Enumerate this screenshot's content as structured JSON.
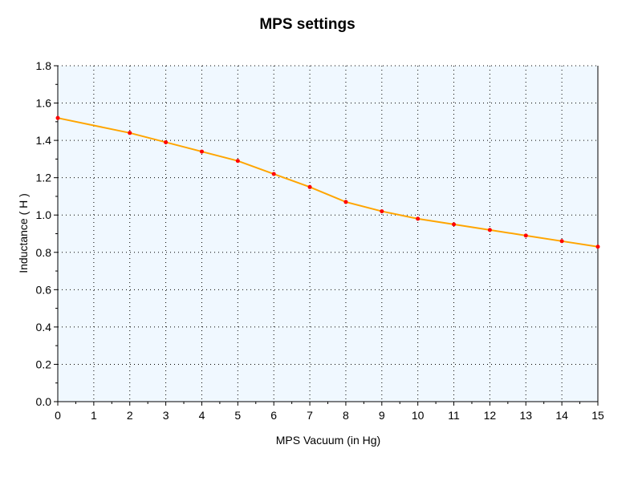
{
  "chart_data": {
    "type": "line",
    "title": "MPS settings",
    "xlabel": "MPS Vacuum (in Hg)",
    "ylabel": "Inductance ( H )",
    "xlim": [
      0,
      15
    ],
    "ylim": [
      0,
      1.8
    ],
    "x_ticks": [
      "0",
      "1",
      "2",
      "3",
      "4",
      "5",
      "6",
      "7",
      "8",
      "9",
      "10",
      "11",
      "12",
      "13",
      "14",
      "15"
    ],
    "y_ticks": [
      "0.0",
      "0.2",
      "0.4",
      "0.6",
      "0.8",
      "1.0",
      "1.2",
      "1.4",
      "1.6",
      "1.8"
    ],
    "grid": true,
    "series": [
      {
        "name": "Inductance",
        "line_color": "#FFA500",
        "marker_color": "#FF0000",
        "x": [
          0,
          2,
          3,
          4,
          5,
          6,
          7,
          8,
          9,
          10,
          11,
          12,
          13,
          14,
          15
        ],
        "y": [
          1.52,
          1.44,
          1.39,
          1.34,
          1.29,
          1.22,
          1.15,
          1.07,
          1.02,
          0.98,
          0.95,
          0.92,
          0.89,
          0.86,
          0.83
        ]
      }
    ],
    "plot_background": "#F0F8FF"
  }
}
